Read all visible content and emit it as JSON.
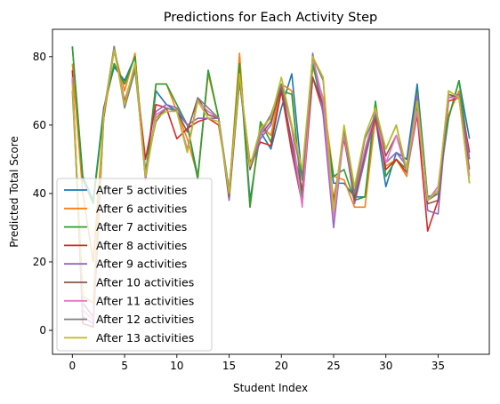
{
  "chart_data": {
    "type": "line",
    "title": "Predictions for Each Activity Step",
    "xlabel": "Student Index",
    "ylabel": "Predicted Total Score",
    "xlim": [
      -1.9,
      39.9
    ],
    "ylim": [
      -7,
      88
    ],
    "xticks": [
      0,
      5,
      10,
      15,
      20,
      25,
      30,
      35
    ],
    "yticks": [
      0,
      20,
      40,
      60,
      80
    ],
    "grid": false,
    "legend_position": "lower-left",
    "x": [
      0,
      1,
      2,
      3,
      4,
      5,
      6,
      7,
      8,
      9,
      10,
      11,
      12,
      13,
      14,
      15,
      16,
      17,
      18,
      19,
      20,
      21,
      22,
      23,
      24,
      25,
      26,
      27,
      28,
      29,
      30,
      31,
      32,
      33,
      34,
      35,
      36,
      37,
      38
    ],
    "series": [
      {
        "name": "After 5 activities",
        "color": "#1f77b4",
        "values": [
          83,
          45,
          38,
          65,
          77,
          73,
          80,
          45,
          70,
          66,
          64,
          60,
          45,
          76,
          62,
          39,
          80,
          38,
          58,
          53,
          65,
          75,
          44,
          78,
          65,
          43,
          43,
          39,
          39,
          62,
          42,
          52,
          50,
          72,
          39,
          40,
          62,
          73,
          56
        ]
      },
      {
        "name": "After 6 activities",
        "color": "#ff7f0e",
        "values": [
          78,
          40,
          20,
          62,
          82,
          70,
          81,
          44,
          72,
          72,
          64,
          56,
          45,
          75,
          62,
          40,
          81,
          36,
          60,
          57,
          72,
          70,
          38,
          77,
          68,
          45,
          44,
          36,
          36,
          62,
          48,
          50,
          45,
          68,
          38,
          40,
          63,
          70,
          52
        ]
      },
      {
        "name": "After 7 activities",
        "color": "#2ca02c",
        "values": [
          83,
          44,
          37,
          64,
          78,
          72,
          80,
          45,
          72,
          72,
          66,
          60,
          44,
          76,
          62,
          40,
          78,
          36,
          61,
          55,
          70,
          69,
          38,
          78,
          64,
          45,
          47,
          38,
          39,
          67,
          45,
          50,
          47,
          70,
          38,
          42,
          62,
          73,
          50
        ]
      },
      {
        "name": "After 8 activities",
        "color": "#d62728",
        "values": [
          76,
          2,
          1,
          62,
          82,
          67,
          77,
          50,
          66,
          65,
          56,
          59,
          61,
          62,
          60,
          41,
          74,
          49,
          55,
          54,
          70,
          52,
          37,
          74,
          64,
          38,
          56,
          39,
          51,
          62,
          47,
          50,
          46,
          63,
          29,
          38,
          67,
          68,
          52
        ]
      },
      {
        "name": "After 9 activities",
        "color": "#9467bd",
        "values": [
          74,
          4,
          2,
          63,
          83,
          66,
          78,
          44,
          64,
          66,
          65,
          60,
          62,
          62,
          62,
          38,
          73,
          47,
          56,
          60,
          72,
          54,
          37,
          81,
          63,
          30,
          58,
          37,
          50,
          63,
          49,
          52,
          48,
          69,
          35,
          34,
          68,
          69,
          50
        ]
      },
      {
        "name": "After 10 activities",
        "color": "#8c564b",
        "values": [
          74,
          8,
          4,
          64,
          82,
          66,
          78,
          45,
          62,
          65,
          64,
          58,
          68,
          63,
          62,
          39,
          73,
          47,
          57,
          61,
          71,
          55,
          41,
          74,
          66,
          36,
          57,
          38,
          52,
          63,
          51,
          57,
          47,
          66,
          37,
          38,
          69,
          68,
          47
        ]
      },
      {
        "name": "After 11 activities",
        "color": "#e377c2",
        "values": [
          74,
          6,
          3,
          63,
          82,
          66,
          78,
          45,
          63,
          65,
          64,
          53,
          67,
          64,
          62,
          41,
          74,
          48,
          57,
          63,
          72,
          59,
          36,
          80,
          67,
          33,
          57,
          40,
          53,
          64,
          49,
          57,
          46,
          64,
          38,
          42,
          68,
          68,
          45
        ]
      },
      {
        "name": "After 12 activities",
        "color": "#7f7f7f",
        "values": [
          70,
          10,
          8,
          63,
          83,
          65,
          76,
          47,
          61,
          65,
          64,
          52,
          68,
          65,
          62,
          41,
          73,
          48,
          58,
          63,
          72,
          60,
          44,
          80,
          73,
          36,
          59,
          40,
          56,
          63,
          53,
          60,
          46,
          67,
          38,
          40,
          70,
          68,
          43
        ]
      },
      {
        "name": "After 13 activities",
        "color": "#bcbd22",
        "values": [
          72,
          10,
          8,
          63,
          82,
          66,
          78,
          45,
          62,
          64,
          64,
          52,
          67,
          62,
          61,
          40,
          75,
          48,
          59,
          62,
          74,
          60,
          47,
          80,
          74,
          35,
          60,
          42,
          57,
          65,
          53,
          60,
          47,
          67,
          38,
          41,
          70,
          68,
          43
        ]
      }
    ]
  }
}
